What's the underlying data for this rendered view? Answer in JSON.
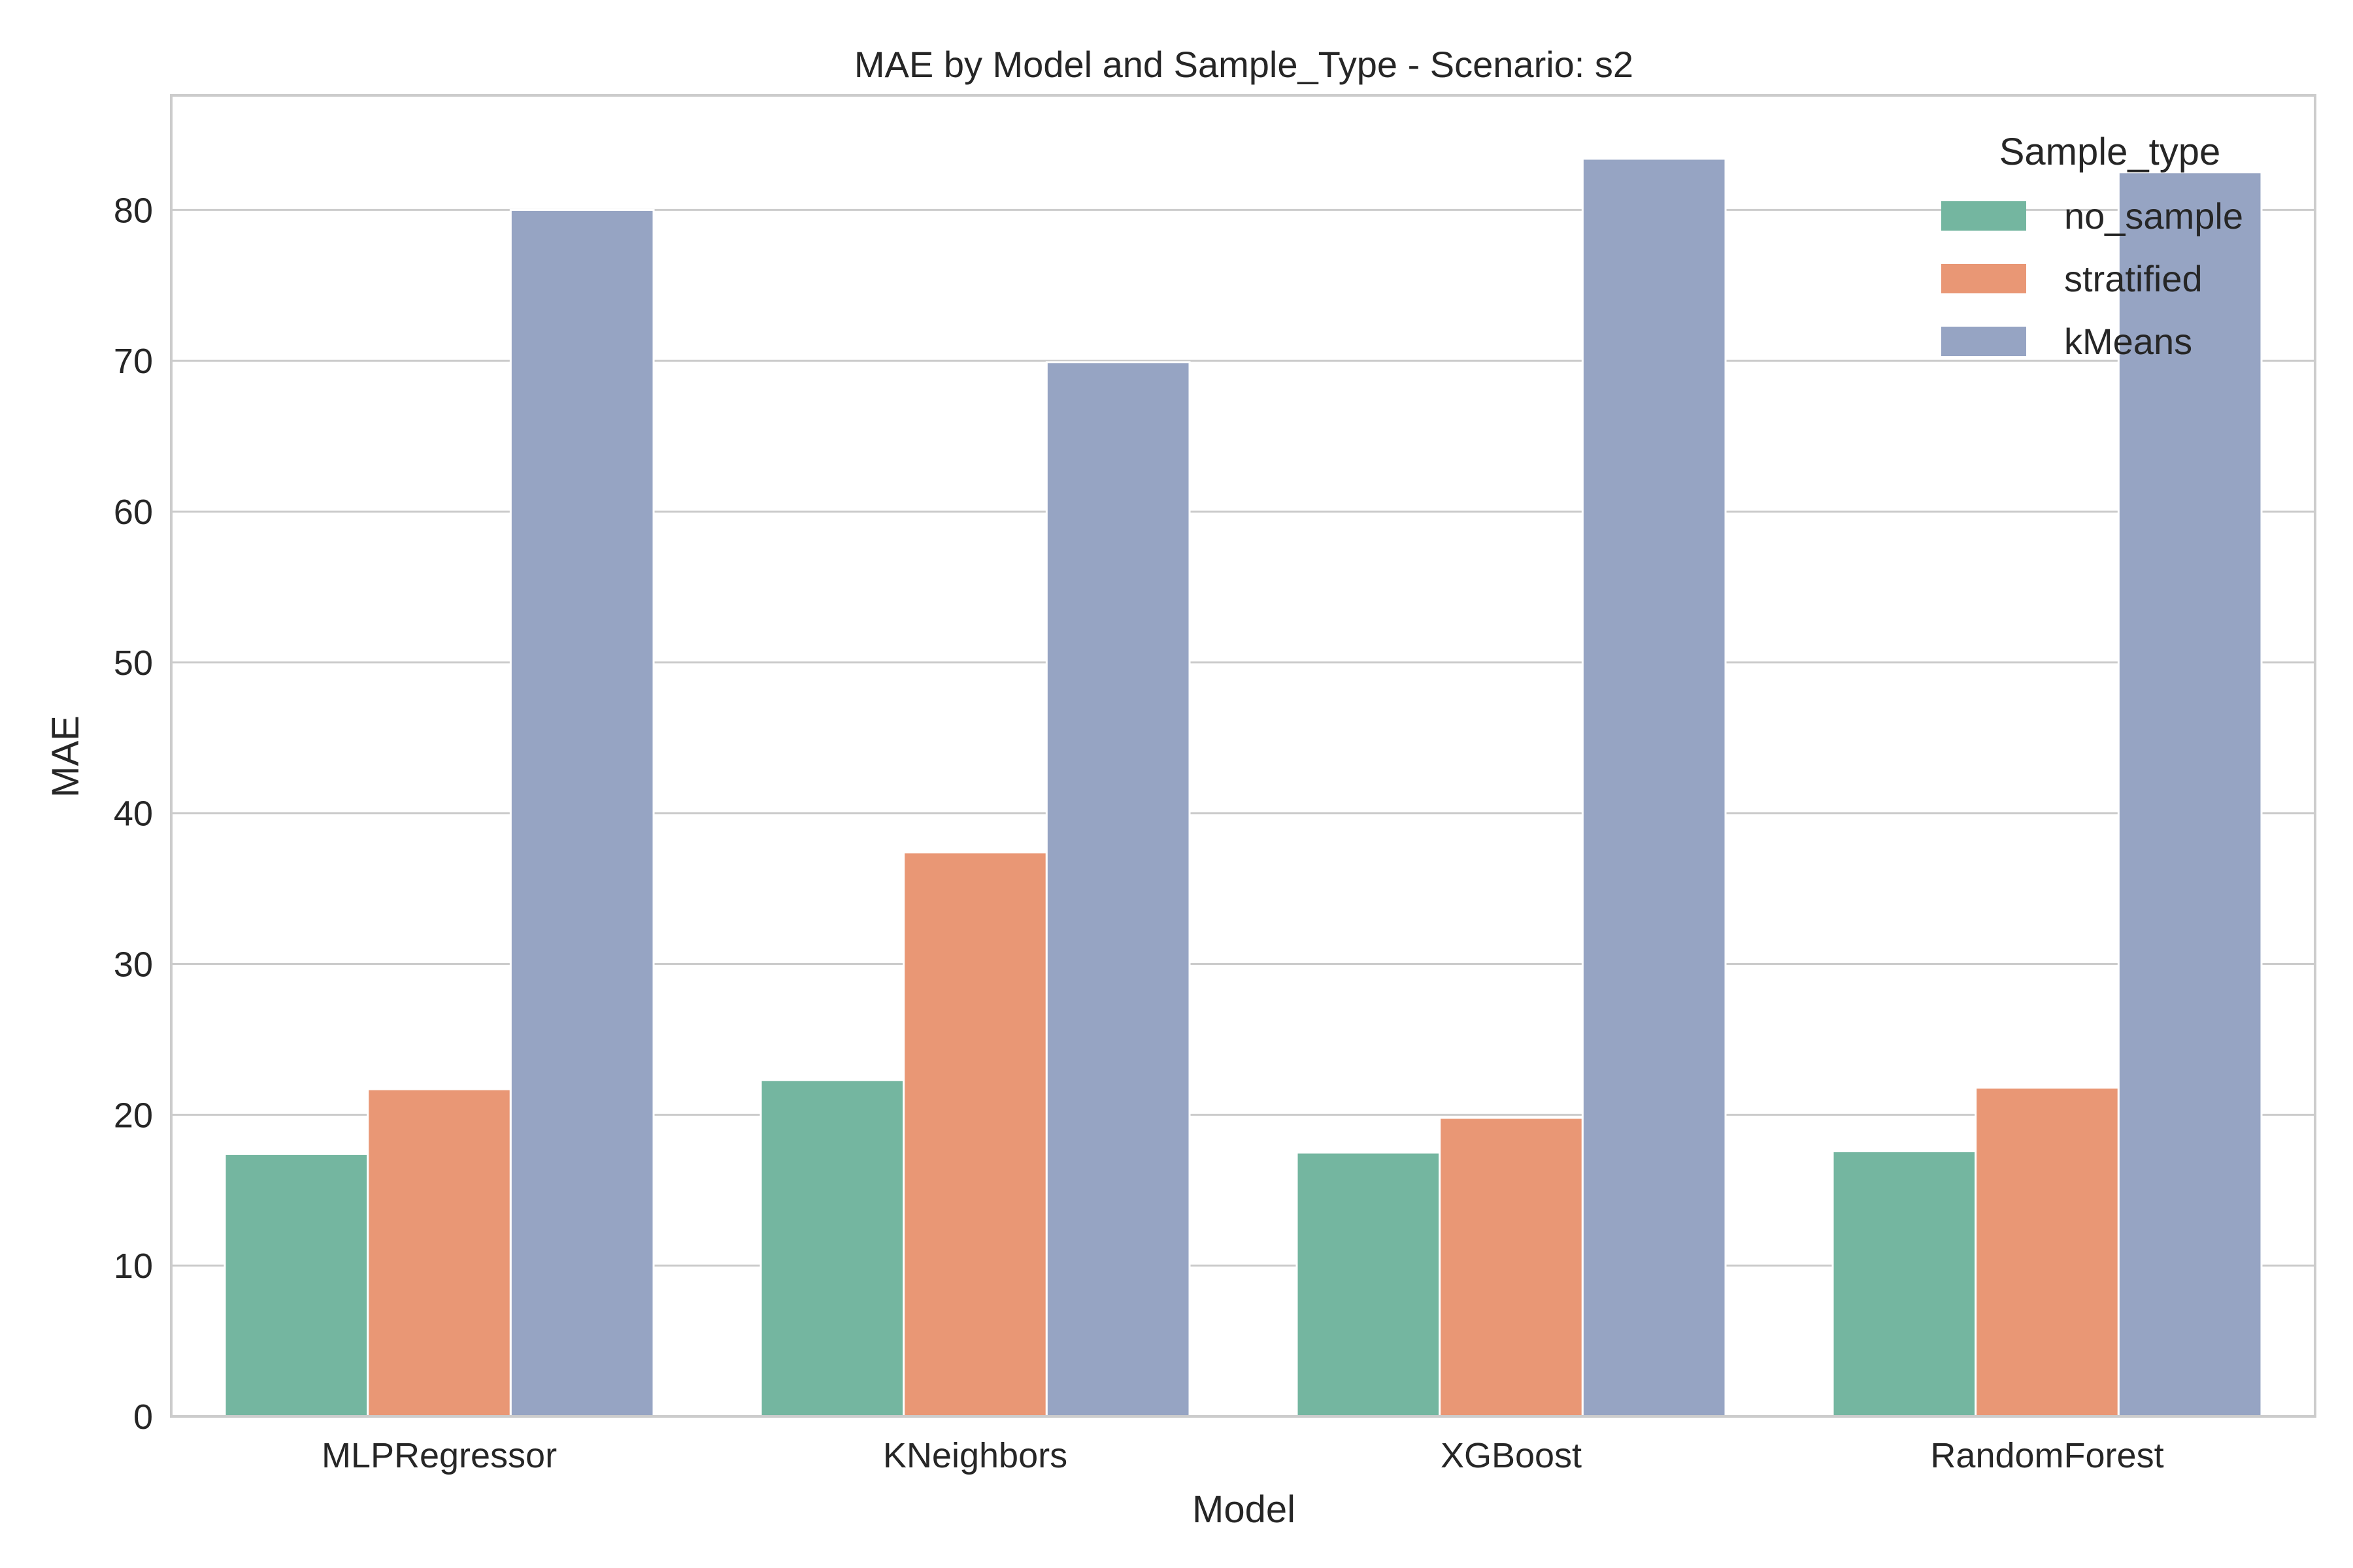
{
  "chart_data": {
    "type": "bar",
    "title": "MAE by Model and Sample_Type - Scenario: s2",
    "xlabel": "Model",
    "ylabel": "MAE",
    "categories": [
      "MLPRegressor",
      "KNeighbors",
      "XGBoost",
      "RandomForest"
    ],
    "series": [
      {
        "name": "no_sample",
        "color": "#74b6a0",
        "values": [
          17.4,
          22.3,
          17.5,
          17.6
        ]
      },
      {
        "name": "stratified",
        "color": "#e99775",
        "values": [
          21.7,
          37.4,
          19.8,
          21.8
        ]
      },
      {
        "name": "kMeans",
        "color": "#96a4c3",
        "values": [
          80.0,
          69.9,
          83.4,
          82.5
        ]
      }
    ],
    "ylim": [
      0,
      87.6
    ],
    "yticks": [
      0,
      10,
      20,
      30,
      40,
      50,
      60,
      70,
      80
    ],
    "grid": true,
    "legend": {
      "title": "Sample_type",
      "placement": "top-right"
    }
  }
}
